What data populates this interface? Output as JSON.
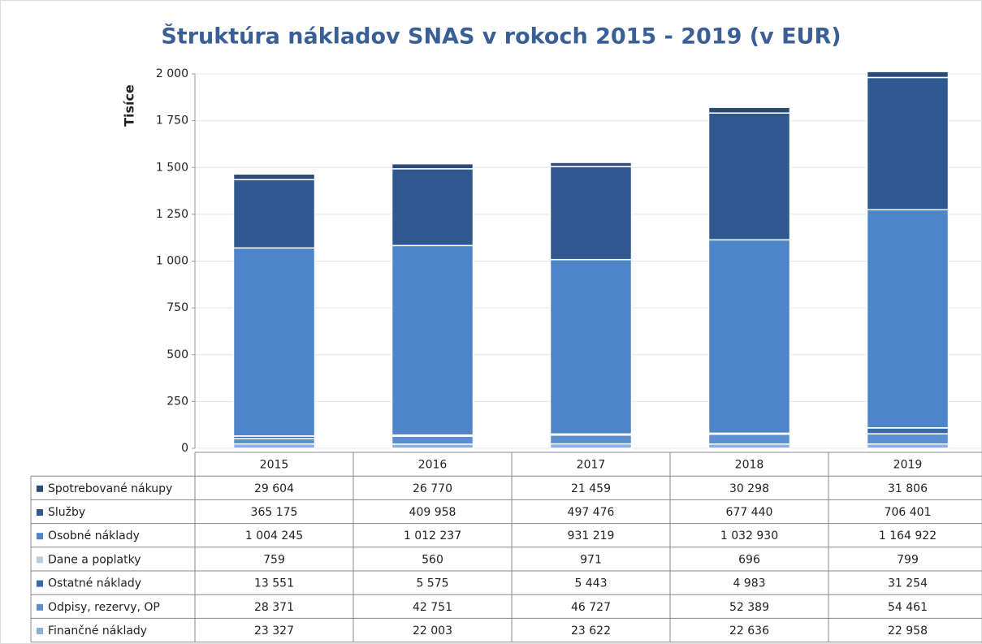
{
  "chart_data": {
    "type": "stacked_bar",
    "title": "Štruktúra nákladov SNAS v rokoch 2015 - 2019 (v EUR)",
    "y_label": "Tisíce",
    "categories": [
      "2015",
      "2016",
      "2017",
      "2018",
      "2019"
    ],
    "ylim": [
      0,
      2000
    ],
    "yticks": [
      0,
      250,
      500,
      750,
      {
        "value": 1000,
        "label": "1 000"
      },
      {
        "value": 1250,
        "label": "1 250"
      },
      {
        "value": 1500,
        "label": "1 500"
      },
      {
        "value": 1750,
        "label": "1 750"
      },
      {
        "value": 2000,
        "label": "2 000"
      }
    ],
    "grid": true,
    "series": [
      {
        "name": "Spotrebované nákupy",
        "color": "#2c4a78",
        "values": [
          29.604,
          26.77,
          21.459,
          30.298,
          31.806
        ],
        "value_labels": [
          "29 604",
          "26 770",
          "21 459",
          "30 298",
          "31 806"
        ]
      },
      {
        "name": "Služby",
        "color": "#2f5890",
        "values": [
          365.175,
          409.958,
          497.476,
          677.44,
          706.401
        ],
        "value_labels": [
          "365 175",
          "409 958",
          "497 476",
          "677 440",
          "706 401"
        ]
      },
      {
        "name": "Osobné náklady",
        "color": "#4d85c8",
        "values": [
          1004.245,
          1012.237,
          931.219,
          1032.93,
          1164.922
        ],
        "value_labels": [
          "1 004 245",
          "1 012 237",
          "931 219",
          "1 032 930",
          "1 164 922"
        ]
      },
      {
        "name": "Dane a poplatky",
        "color": "#b7cae6",
        "values": [
          0.759,
          0.56,
          0.971,
          0.696,
          0.799
        ],
        "value_labels": [
          "759",
          "560",
          "971",
          "696",
          "799"
        ]
      },
      {
        "name": "Ostatné náklady",
        "color": "#3c68a8",
        "values": [
          13.551,
          5.575,
          5.443,
          4.983,
          31.254
        ],
        "value_labels": [
          "13 551",
          "5 575",
          "5 443",
          "4 983",
          "31 254"
        ]
      },
      {
        "name": "Odpisy, rezervy, OP",
        "color": "#5b8fd2",
        "values": [
          28.371,
          42.751,
          46.727,
          52.389,
          54.461
        ],
        "value_labels": [
          "28 371",
          "42 751",
          "46 727",
          "52 389",
          "54 461"
        ]
      },
      {
        "name": "Finančné náklady",
        "color": "#8eaede",
        "values": [
          23.327,
          22.003,
          23.622,
          22.636,
          22.958
        ],
        "value_labels": [
          "23 327",
          "22 003",
          "23 622",
          "22 636",
          "22 958"
        ]
      }
    ]
  }
}
